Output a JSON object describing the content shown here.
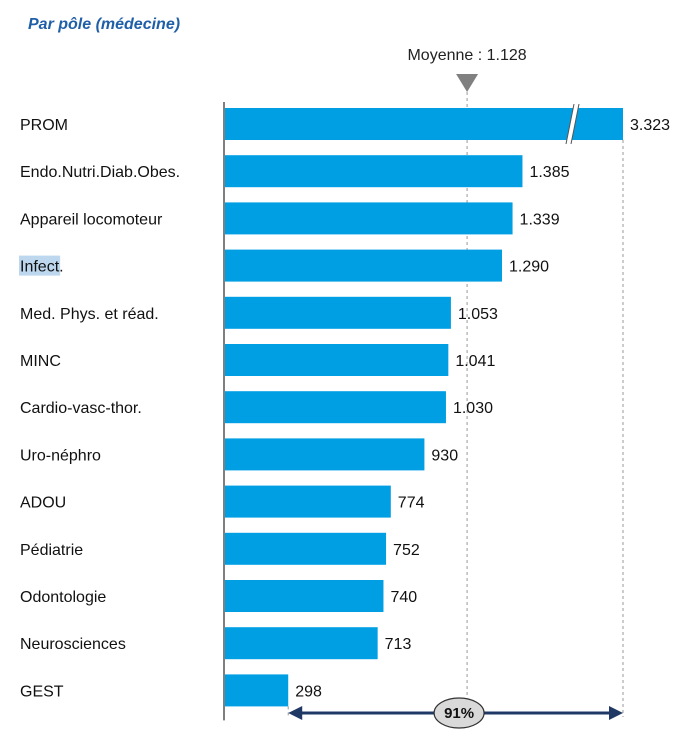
{
  "chart_data": {
    "type": "bar",
    "orientation": "horizontal",
    "title": "Par pôle (médecine)",
    "categories": [
      "PROM",
      "Endo.Nutri.Diab.Obes.",
      "Appareil locomoteur",
      "Infect.",
      "Med. Phys. et réad.",
      "MINC",
      "Cardio-vasc-thor.",
      "Uro-néphro",
      "ADOU",
      "Pédiatrie",
      "Odontologie",
      "Neurosciences",
      "GEST"
    ],
    "values": [
      3323,
      1385,
      1339,
      1290,
      1053,
      1041,
      1030,
      930,
      774,
      752,
      740,
      713,
      298
    ],
    "value_labels": [
      "3.323",
      "1.385",
      "1.339",
      "1.290",
      "1.053",
      "1.041",
      "1.030",
      "930",
      "774",
      "752",
      "740",
      "713",
      "298"
    ],
    "axis_break_on": "PROM",
    "mean": {
      "value": 1128,
      "label": "Moyenne : 1.128"
    },
    "range_annotation": {
      "from_value": 298,
      "to_value": 3323,
      "label": "91%"
    },
    "highlighted_category": "Infect.",
    "highlighted_text": "Infect",
    "colors": {
      "bar": "#009fe3",
      "title": "#1f5fa8",
      "arrow": "#1f3864",
      "marker": "#808080",
      "highlight": "#bdd7ee"
    }
  }
}
